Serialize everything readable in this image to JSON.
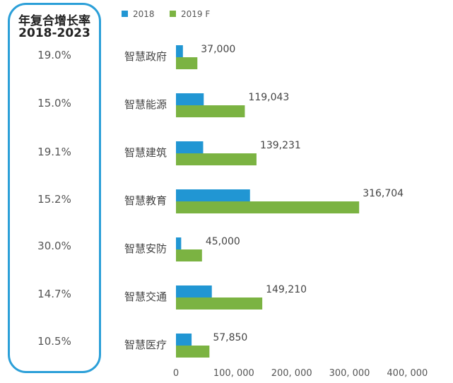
{
  "cagr_panel": {
    "title_line1": "年复合增长率",
    "title_line2": "2018-2023",
    "values": [
      "19.0%",
      "15.0%",
      "19.1%",
      "15.2%",
      "30.0%",
      "14.7%",
      "10.5%"
    ]
  },
  "colors": {
    "series_2018": "#2196d3",
    "series_2019F": "#7bb342",
    "panel_border": "#2b9fd8"
  },
  "chart_data": {
    "type": "bar",
    "orientation": "horizontal",
    "categories": [
      "智慧政府",
      "智慧能源",
      "智慧建筑",
      "智慧教育",
      "智慧安防",
      "智慧交通",
      "智慧医疗"
    ],
    "series": [
      {
        "name": "2018",
        "values": [
          12000,
          48000,
          47000,
          128000,
          9000,
          62000,
          27000
        ]
      },
      {
        "name": "2019 F",
        "values": [
          37000,
          119043,
          139231,
          316704,
          45000,
          149210,
          57850
        ]
      }
    ],
    "data_labels": [
      "37,000",
      "119,043",
      "139,231",
      "316,704",
      "45,000",
      "149,210",
      "57,850"
    ],
    "xlim": [
      0,
      440000
    ],
    "x_ticks": [
      0,
      100000,
      200000,
      300000,
      400000
    ],
    "x_tick_labels": [
      "0",
      "100, 000",
      "200, 000",
      "300, 000",
      "400, 000"
    ],
    "legend_position": "top",
    "grid": false
  }
}
